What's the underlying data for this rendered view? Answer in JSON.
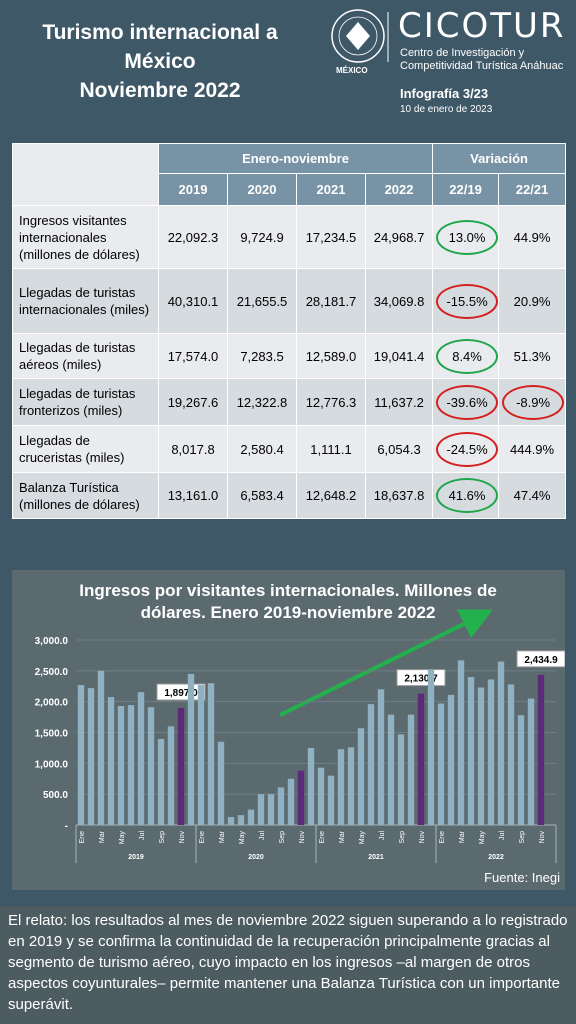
{
  "header": {
    "title_lines": [
      "Turismo internacional a",
      "México",
      "Noviembre 2022"
    ],
    "brand": "CICOTUR",
    "brand_lines": [
      "Centro de Investigación y",
      "Competitividad Turística Anáhuac"
    ],
    "seal_label": "MÉXICO",
    "issue": "Infografía 3/23",
    "date": "10 de enero de 2023"
  },
  "table": {
    "groups": [
      "Enero-noviembre",
      "Variación"
    ],
    "columns": [
      "2019",
      "2020",
      "2021",
      "2022",
      "22/19",
      "22/21"
    ],
    "rows": [
      {
        "label": "Ingresos visitantes internacionales (millones de dólares)",
        "cells": [
          "22,092.3",
          "9,724.9",
          "17,234.5",
          "24,968.7",
          "13.0%",
          "44.9%"
        ],
        "circles": [
          "green",
          null
        ]
      },
      {
        "label": "Llegadas de turistas internacionales (miles)",
        "cells": [
          "40,310.1",
          "21,655.5",
          "28,181.7",
          "34,069.8",
          "-15.5%",
          "20.9%"
        ],
        "circles": [
          "red",
          null
        ]
      },
      {
        "label": "Llegadas de turistas aéreos (miles)",
        "cells": [
          "17,574.0",
          "7,283.5",
          "12,589.0",
          "19,041.4",
          "8.4%",
          "51.3%"
        ],
        "circles": [
          "green",
          null
        ]
      },
      {
        "label": "Llegadas de turistas fronterizos (miles)",
        "cells": [
          "19,267.6",
          "12,322.8",
          "12,776.3",
          "11,637.2",
          "-39.6%",
          "-8.9%"
        ],
        "circles": [
          "red",
          "red"
        ]
      },
      {
        "label": "Llegadas de cruceristas (miles)",
        "cells": [
          "8,017.8",
          "2,580.4",
          "1,111.1",
          "6,054.3",
          "-24.5%",
          "444.9%"
        ],
        "circles": [
          "red",
          null
        ]
      },
      {
        "label": "Balanza Turística (millones de dólares)",
        "cells": [
          "13,161.0",
          "6,583.4",
          "12,648.2",
          "18,637.8",
          "41.6%",
          "47.4%"
        ],
        "circles": [
          "green",
          null
        ]
      }
    ]
  },
  "chart_data": {
    "type": "bar",
    "title": "Ingresos por visitantes internacionales. Millones de dólares. Enero 2019-noviembre 2022",
    "categories": [
      "Ene",
      null,
      "Mar",
      null,
      "May",
      null,
      "Jul",
      null,
      "Sep",
      null,
      "Nov",
      null,
      "Ene",
      null,
      "Mar",
      null,
      "May",
      null,
      "Jul",
      null,
      "Sep",
      null,
      "Nov",
      null,
      "Ene",
      null,
      "Mar",
      null,
      "May",
      null,
      "Jul",
      null,
      "Sep",
      null,
      "Nov",
      null,
      "Ene",
      null,
      "Mar",
      null,
      "May",
      null,
      "Jul",
      null,
      "Sep",
      null,
      "Nov"
    ],
    "year_labels": [
      "2019",
      "2020",
      "2021",
      "2022"
    ],
    "values": [
      2270,
      2220,
      2500,
      2075,
      1930,
      1945,
      2155,
      1910,
      1395,
      1600,
      1897.0,
      2450,
      2270,
      2300,
      1350,
      130,
      160,
      250,
      500,
      500,
      610,
      750,
      880,
      1250,
      930,
      800,
      1230,
      1260,
      1570,
      1960,
      2200,
      1790,
      1470,
      1790,
      2130.7,
      2520,
      1970,
      2110,
      2670,
      2400,
      2230,
      2360,
      2650,
      2280,
      1780,
      2050,
      2434.9
    ],
    "value_labels": [
      null,
      null,
      null,
      null,
      null,
      null,
      null,
      null,
      null,
      null,
      "1,897.0",
      null,
      null,
      null,
      null,
      null,
      null,
      null,
      null,
      null,
      null,
      null,
      null,
      null,
      null,
      null,
      null,
      null,
      null,
      null,
      null,
      null,
      null,
      null,
      "2,130.7",
      null,
      null,
      null,
      null,
      null,
      null,
      null,
      null,
      null,
      null,
      null,
      "2,434.9"
    ],
    "color": "#8fb1c1",
    "highlight_color": "#5b2a78",
    "highlight_category": "Nov",
    "ylim": [
      0,
      3000
    ],
    "yticks": [
      {
        "value": 0,
        "label": "-"
      },
      {
        "value": 500,
        "label": "500.0"
      },
      {
        "value": 1000,
        "label": "1,000.0"
      },
      {
        "value": 1500,
        "label": "1,500.0"
      },
      {
        "value": 2000,
        "label": "2,000.0"
      },
      {
        "value": 2500,
        "label": "2,500.0"
      },
      {
        "value": 3000,
        "label": "3,000.0"
      }
    ],
    "grid": true,
    "source": "Fuente: Inegi"
  },
  "footer": {
    "text": "El relato: los resultados al mes de noviembre 2022 siguen superando a lo registrado en 2019 y se confirma la continuidad de la recuperación principalmente gracias al segmento de turismo aéreo, cuyo impacto en los ingresos –al margen de otros aspectos coyunturales– permite mantener una Balanza Turística con un importante superávit."
  }
}
